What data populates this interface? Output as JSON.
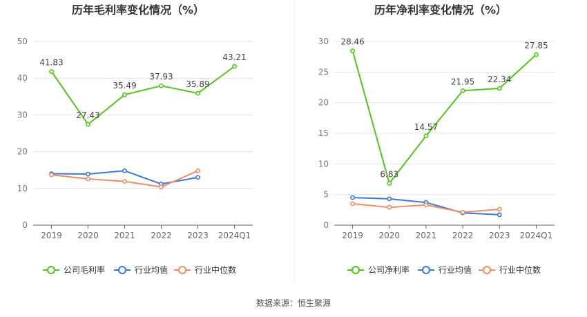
{
  "source": {
    "label": "数据来源：",
    "value": "恒生聚源"
  },
  "colors": {
    "company": "#52c41a",
    "industry_avg": "#3a78e0",
    "industry_median": "#f08c64"
  },
  "chart_data": [
    {
      "type": "line",
      "title": "历年毛利率变化情况（%）",
      "categories": [
        "2019",
        "2020",
        "2021",
        "2022",
        "2023",
        "2024Q1"
      ],
      "ylim": [
        0,
        50
      ],
      "yticks": [
        0,
        10,
        20,
        30,
        40,
        50
      ],
      "grid": true,
      "legend_position": "bottom",
      "series": [
        {
          "name": "公司毛利率",
          "key": "company",
          "values": [
            41.83,
            27.43,
            35.49,
            37.93,
            35.89,
            43.21
          ],
          "labels": true
        },
        {
          "name": "行业均值",
          "key": "industry_avg",
          "values": [
            14.0,
            13.9,
            14.8,
            11.2,
            13.0,
            null
          ],
          "labels": false
        },
        {
          "name": "行业中位数",
          "key": "industry_median",
          "values": [
            13.7,
            12.6,
            11.9,
            10.4,
            14.8,
            null
          ],
          "labels": false
        }
      ]
    },
    {
      "type": "line",
      "title": "历年净利率变化情况（%）",
      "categories": [
        "2019",
        "2020",
        "2021",
        "2022",
        "2023",
        "2024Q1"
      ],
      "ylim": [
        0,
        30
      ],
      "yticks": [
        0,
        5,
        10,
        15,
        20,
        25,
        30
      ],
      "grid": true,
      "legend_position": "bottom",
      "series": [
        {
          "name": "公司净利率",
          "key": "company",
          "values": [
            28.46,
            6.83,
            14.57,
            21.95,
            22.34,
            27.85
          ],
          "labels": true
        },
        {
          "name": "行业均值",
          "key": "industry_avg",
          "values": [
            4.5,
            4.3,
            3.7,
            2.0,
            1.7,
            null
          ],
          "labels": false
        },
        {
          "name": "行业中位数",
          "key": "industry_median",
          "values": [
            3.5,
            2.9,
            3.3,
            2.1,
            2.6,
            null
          ],
          "labels": false
        }
      ]
    }
  ]
}
